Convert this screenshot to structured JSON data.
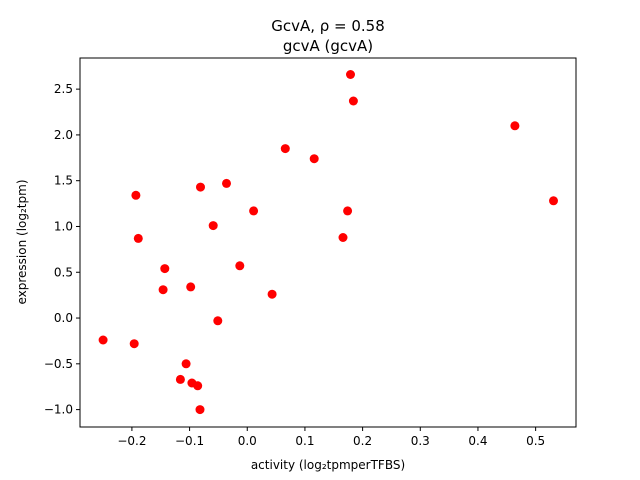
{
  "chart_data": {
    "type": "scatter",
    "title": "GcvA, ρ = 0.58",
    "subtitle": "gcvA (gcvA)",
    "xlabel": "activity (log₂tpmperTFBS)",
    "ylabel": "expression (log₂tpm)",
    "xlim": [
      -0.29,
      0.57
    ],
    "ylim": [
      -1.19,
      2.84
    ],
    "xticks": [
      -0.2,
      -0.1,
      0.0,
      0.1,
      0.2,
      0.3,
      0.4,
      0.5
    ],
    "xtick_labels": [
      "−0.2",
      "−0.1",
      "0.0",
      "0.1",
      "0.2",
      "0.3",
      "0.4",
      "0.5"
    ],
    "yticks": [
      -1.0,
      -0.5,
      0.0,
      0.5,
      1.0,
      1.5,
      2.0,
      2.5
    ],
    "ytick_labels": [
      "−1.0",
      "−0.5",
      "0.0",
      "0.5",
      "1.0",
      "1.5",
      "2.0",
      "2.5"
    ],
    "marker_color": "#ff0000",
    "grid": false,
    "points": [
      {
        "x": -0.25,
        "y": -0.24
      },
      {
        "x": -0.196,
        "y": -0.28
      },
      {
        "x": -0.193,
        "y": 1.34
      },
      {
        "x": -0.189,
        "y": 0.87
      },
      {
        "x": -0.143,
        "y": 0.54
      },
      {
        "x": -0.146,
        "y": 0.31
      },
      {
        "x": -0.116,
        "y": -0.67
      },
      {
        "x": -0.106,
        "y": -0.5
      },
      {
        "x": -0.098,
        "y": 0.34
      },
      {
        "x": -0.096,
        "y": -0.71
      },
      {
        "x": -0.086,
        "y": -0.74
      },
      {
        "x": -0.082,
        "y": -1.0
      },
      {
        "x": -0.081,
        "y": 1.43
      },
      {
        "x": -0.059,
        "y": 1.01
      },
      {
        "x": -0.051,
        "y": -0.03
      },
      {
        "x": -0.036,
        "y": 1.47
      },
      {
        "x": -0.013,
        "y": 0.57
      },
      {
        "x": 0.011,
        "y": 1.17
      },
      {
        "x": 0.043,
        "y": 0.26
      },
      {
        "x": 0.066,
        "y": 1.85
      },
      {
        "x": 0.116,
        "y": 1.74
      },
      {
        "x": 0.166,
        "y": 0.88
      },
      {
        "x": 0.174,
        "y": 1.17
      },
      {
        "x": 0.179,
        "y": 2.66
      },
      {
        "x": 0.184,
        "y": 2.37
      },
      {
        "x": 0.464,
        "y": 2.1
      },
      {
        "x": 0.531,
        "y": 1.28
      }
    ]
  }
}
